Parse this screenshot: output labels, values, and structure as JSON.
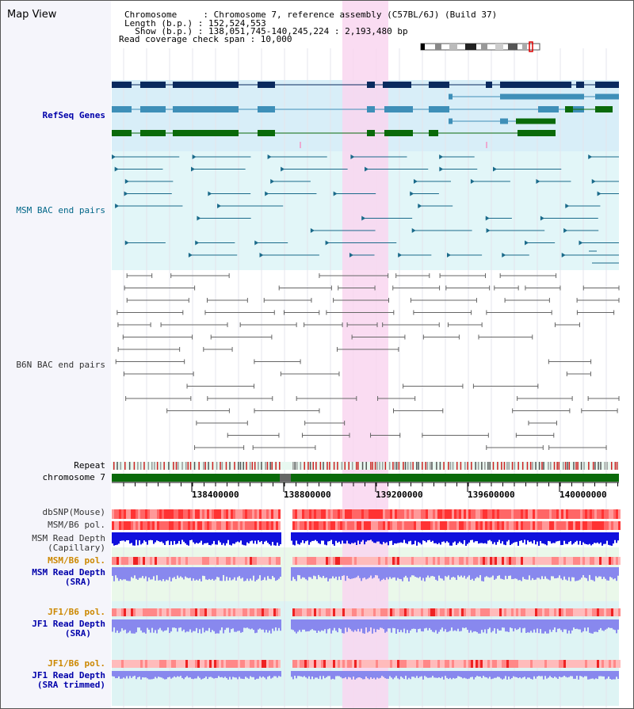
{
  "header": {
    "title": "Map View",
    "info_lines": [
      "Chromosome     : Chromosome 7, reference assembly (C57BL/6J) (Build 37)",
      "Length (b.p.) : 152,524,553",
      "  Show (b.p.) : 138,051,745-140,245,224 : 2,193,480 bp",
      "Read coverage check span : 10,000"
    ]
  },
  "tracks": {
    "refseq": "RefSeq Genes",
    "msm_bac": "MSM BAC end pairs",
    "b6n_bac": "B6N BAC end pairs",
    "repeat": "Repeat",
    "chromosome": "chromosome 7",
    "dbsnp": "dbSNP(Mouse)",
    "msm_b6_pol_1": "MSM/B6 pol.",
    "msm_depth_cap_1": "MSM Read Depth",
    "msm_depth_cap_2": "(Capillary)",
    "msm_b6_pol_2": "MSM/B6 pol.",
    "msm_depth_sra_1": "MSM Read Depth",
    "msm_depth_sra_2": "(SRA)",
    "jf1_pol_1": "JF1/B6 pol.",
    "jf1_depth_sra_1": "JF1 Read Depth",
    "jf1_depth_sra_2": "(SRA)",
    "jf1_pol_2": "JF1/B6 pol.",
    "jf1_depth_trim_1": "JF1 Read Depth",
    "jf1_depth_trim_2": "(SRA trimmed)"
  },
  "axis": {
    "ticks": [
      "138400000",
      "138800000",
      "139200000",
      "139600000",
      "140000000"
    ]
  },
  "colors": {
    "refseq_dark": "#0a2a5e",
    "refseq_mid": "#3e8fb8",
    "refseq_green": "#0a6a0a",
    "msm_bac": "#1a6a8a",
    "b6n_bac": "#666666",
    "highlight": "#f9d6f0",
    "label_blue": "#0000aa",
    "label_orange": "#cc8800",
    "label_msm": "#006688",
    "chromosome_bar": "#0a6a0a",
    "depth_dark": "#1010dd",
    "depth_light": "#8888ee"
  }
}
